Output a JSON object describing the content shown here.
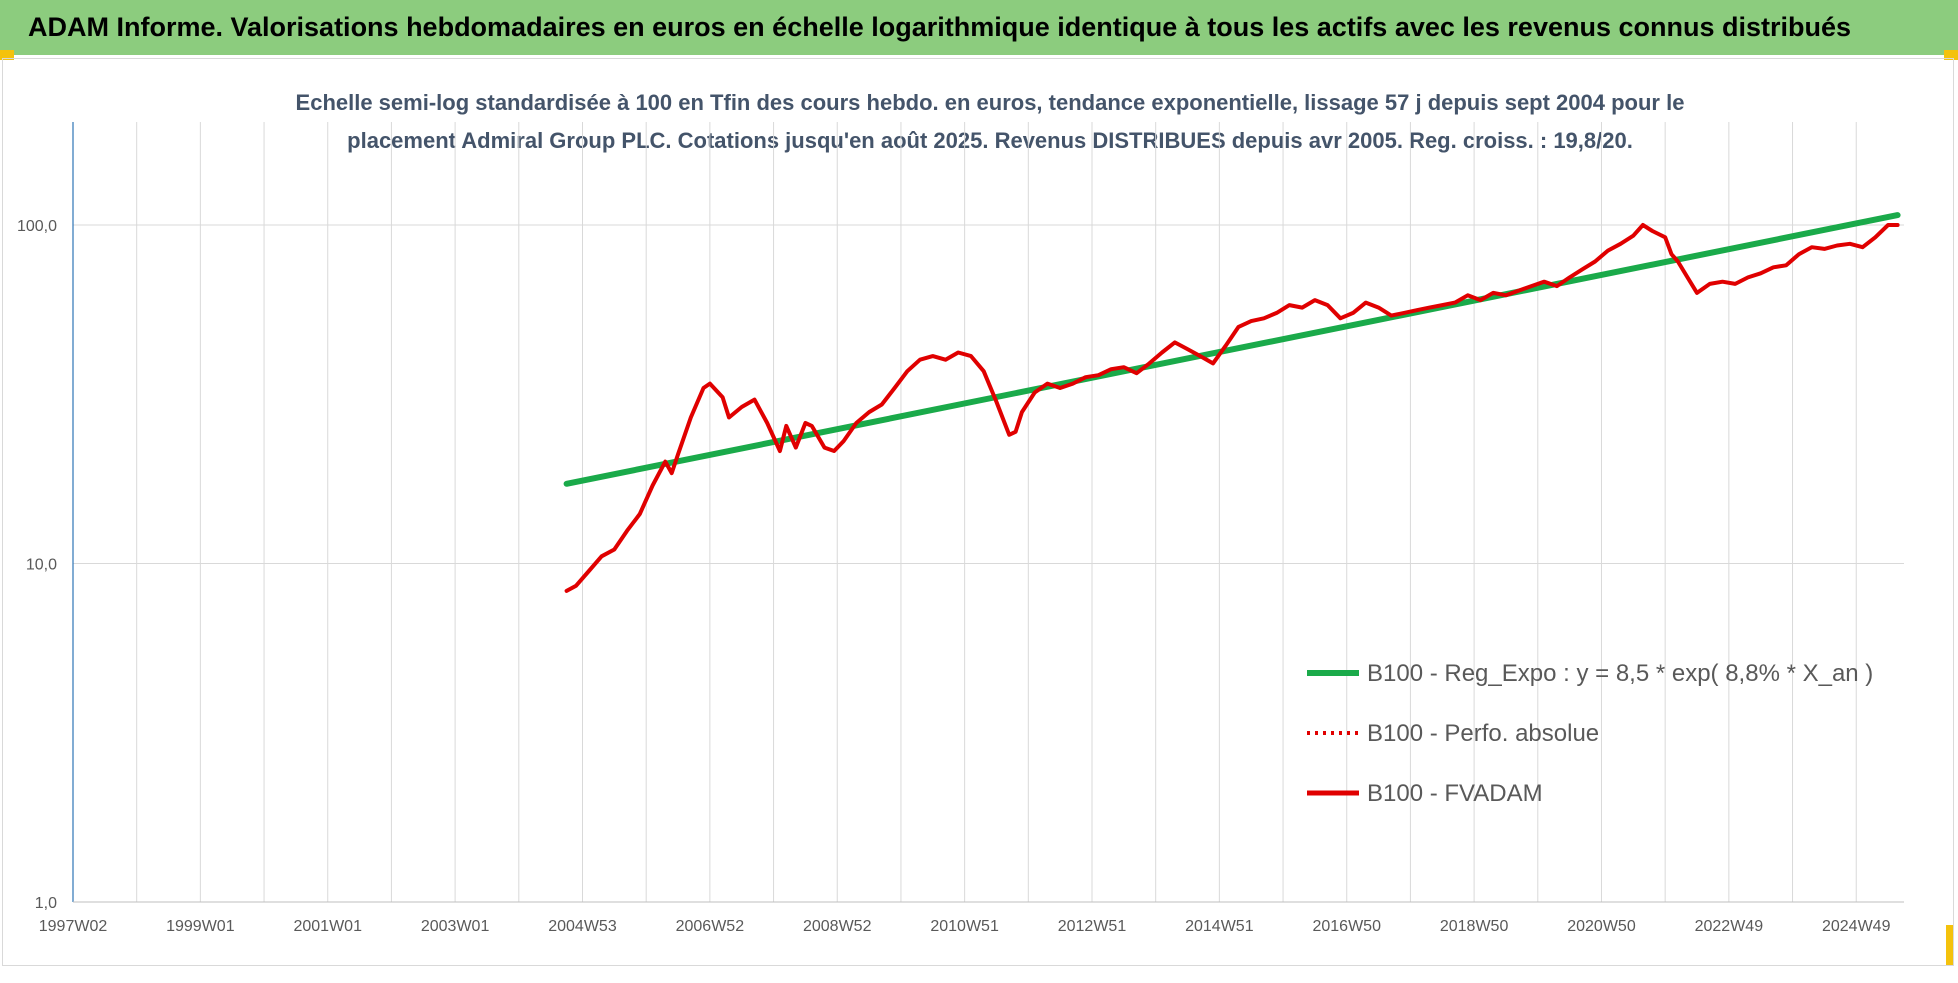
{
  "header": {
    "title": "ADAM Informe. Valorisations hebdomadaires en euros en échelle logarithmique identique à tous les actifs avec les revenus connus distribués"
  },
  "chart_data": {
    "type": "line",
    "title_lines": [
      "Echelle semi-log standardisée à 100 en Tfin des cours hebdo. en euros, tendance exponentielle, lissage 57 j depuis sept 2004 pour le",
      "placement Admiral Group PLC. Cotations jusqu'en août 2025. Revenus DISTRIBUES depuis avr 2005. Reg. croiss. : 19,8/20."
    ],
    "y_scale": "log",
    "ylim": [
      1,
      200
    ],
    "y_ticks": [
      {
        "value": 1,
        "label": "1,0"
      },
      {
        "value": 10,
        "label": "10,0"
      },
      {
        "value": 100,
        "label": "100,0"
      }
    ],
    "xlim": [
      1997.0,
      2025.75
    ],
    "x_ticks": [
      {
        "value": 1997.0,
        "label": "1997W02"
      },
      {
        "value": 1999.0,
        "label": "1999W01"
      },
      {
        "value": 2001.0,
        "label": "2001W01"
      },
      {
        "value": 2003.0,
        "label": "2003W01"
      },
      {
        "value": 2005.0,
        "label": "2004W53"
      },
      {
        "value": 2007.0,
        "label": "2006W52"
      },
      {
        "value": 2009.0,
        "label": "2008W52"
      },
      {
        "value": 2011.0,
        "label": "2010W51"
      },
      {
        "value": 2013.0,
        "label": "2012W51"
      },
      {
        "value": 2015.0,
        "label": "2014W51"
      },
      {
        "value": 2017.0,
        "label": "2016W50"
      },
      {
        "value": 2019.0,
        "label": "2018W50"
      },
      {
        "value": 2021.0,
        "label": "2020W50"
      },
      {
        "value": 2023.0,
        "label": "2022W49"
      },
      {
        "value": 2025.0,
        "label": "2024W49"
      }
    ],
    "grid": "vertical lines at each year, horizontal lines at y-ticks",
    "legend_position": "bottom-right",
    "series": [
      {
        "name": "B100 - Reg_Expo : y = 8,5 * exp( 8,8% *  X_an )",
        "color": "#1aaa4a",
        "style": "solid",
        "x": [
          2004.75,
          2025.65
        ],
        "y": [
          17.2,
          107
        ]
      },
      {
        "name": "B100 - Perfo. absolue",
        "color": "#e00000",
        "style": "dotted",
        "x": [],
        "y": []
      },
      {
        "name": "B100 - FVADAM",
        "color": "#e00000",
        "style": "solid",
        "x": [
          2004.75,
          2004.9,
          2005.1,
          2005.3,
          2005.5,
          2005.7,
          2005.9,
          2006.1,
          2006.3,
          2006.4,
          2006.5,
          2006.7,
          2006.9,
          2007.0,
          2007.2,
          2007.3,
          2007.5,
          2007.7,
          2007.9,
          2008.1,
          2008.2,
          2008.35,
          2008.5,
          2008.6,
          2008.8,
          2008.95,
          2009.1,
          2009.3,
          2009.5,
          2009.7,
          2009.9,
          2010.1,
          2010.3,
          2010.5,
          2010.7,
          2010.9,
          2011.1,
          2011.3,
          2011.5,
          2011.7,
          2011.8,
          2011.9,
          2012.1,
          2012.3,
          2012.5,
          2012.7,
          2012.9,
          2013.1,
          2013.3,
          2013.5,
          2013.7,
          2013.9,
          2014.1,
          2014.3,
          2014.5,
          2014.7,
          2014.9,
          2015.1,
          2015.3,
          2015.5,
          2015.7,
          2015.9,
          2016.1,
          2016.3,
          2016.5,
          2016.7,
          2016.9,
          2017.1,
          2017.3,
          2017.5,
          2017.7,
          2017.9,
          2018.1,
          2018.3,
          2018.5,
          2018.7,
          2018.9,
          2019.1,
          2019.3,
          2019.5,
          2019.7,
          2019.9,
          2020.1,
          2020.3,
          2020.5,
          2020.7,
          2020.9,
          2021.1,
          2021.3,
          2021.5,
          2021.65,
          2021.8,
          2022.0,
          2022.1,
          2022.2,
          2022.35,
          2022.5,
          2022.7,
          2022.9,
          2023.1,
          2023.3,
          2023.5,
          2023.7,
          2023.9,
          2024.1,
          2024.3,
          2024.5,
          2024.7,
          2024.9,
          2025.1,
          2025.3,
          2025.5,
          2025.65
        ],
        "y": [
          8.3,
          8.6,
          9.5,
          10.5,
          11.0,
          12.5,
          14.0,
          17.0,
          20.0,
          18.5,
          21.0,
          27.0,
          33.0,
          34.0,
          31.0,
          27.0,
          29.0,
          30.5,
          26.0,
          21.5,
          25.5,
          22.0,
          26.0,
          25.5,
          22.0,
          21.5,
          23.0,
          26.0,
          28.0,
          29.5,
          33.0,
          37.0,
          40.0,
          41.0,
          40.0,
          42.0,
          41.0,
          37.0,
          30.0,
          24.0,
          24.5,
          28.0,
          32.0,
          34.0,
          33.0,
          34.0,
          35.5,
          36.0,
          37.5,
          38.0,
          36.5,
          39.0,
          42.0,
          45.0,
          43.0,
          41.0,
          39.0,
          44.0,
          50.0,
          52.0,
          53.0,
          55.0,
          58.0,
          57.0,
          60.0,
          58.0,
          53.0,
          55.0,
          59.0,
          57.0,
          54.0,
          55.0,
          56.0,
          57.0,
          58.0,
          59.0,
          62.0,
          60.0,
          63.0,
          62.0,
          64.0,
          66.0,
          68.0,
          66.0,
          70.0,
          74.0,
          78.0,
          84.0,
          88.0,
          93.0,
          100.0,
          96.0,
          92.0,
          82.0,
          78.0,
          70.0,
          63.0,
          67.0,
          68.0,
          67.0,
          70.0,
          72.0,
          75.0,
          76.0,
          82.0,
          86.0,
          85.0,
          87.0,
          88.0,
          86.0,
          92.0,
          100.0,
          100.0
        ]
      }
    ]
  }
}
